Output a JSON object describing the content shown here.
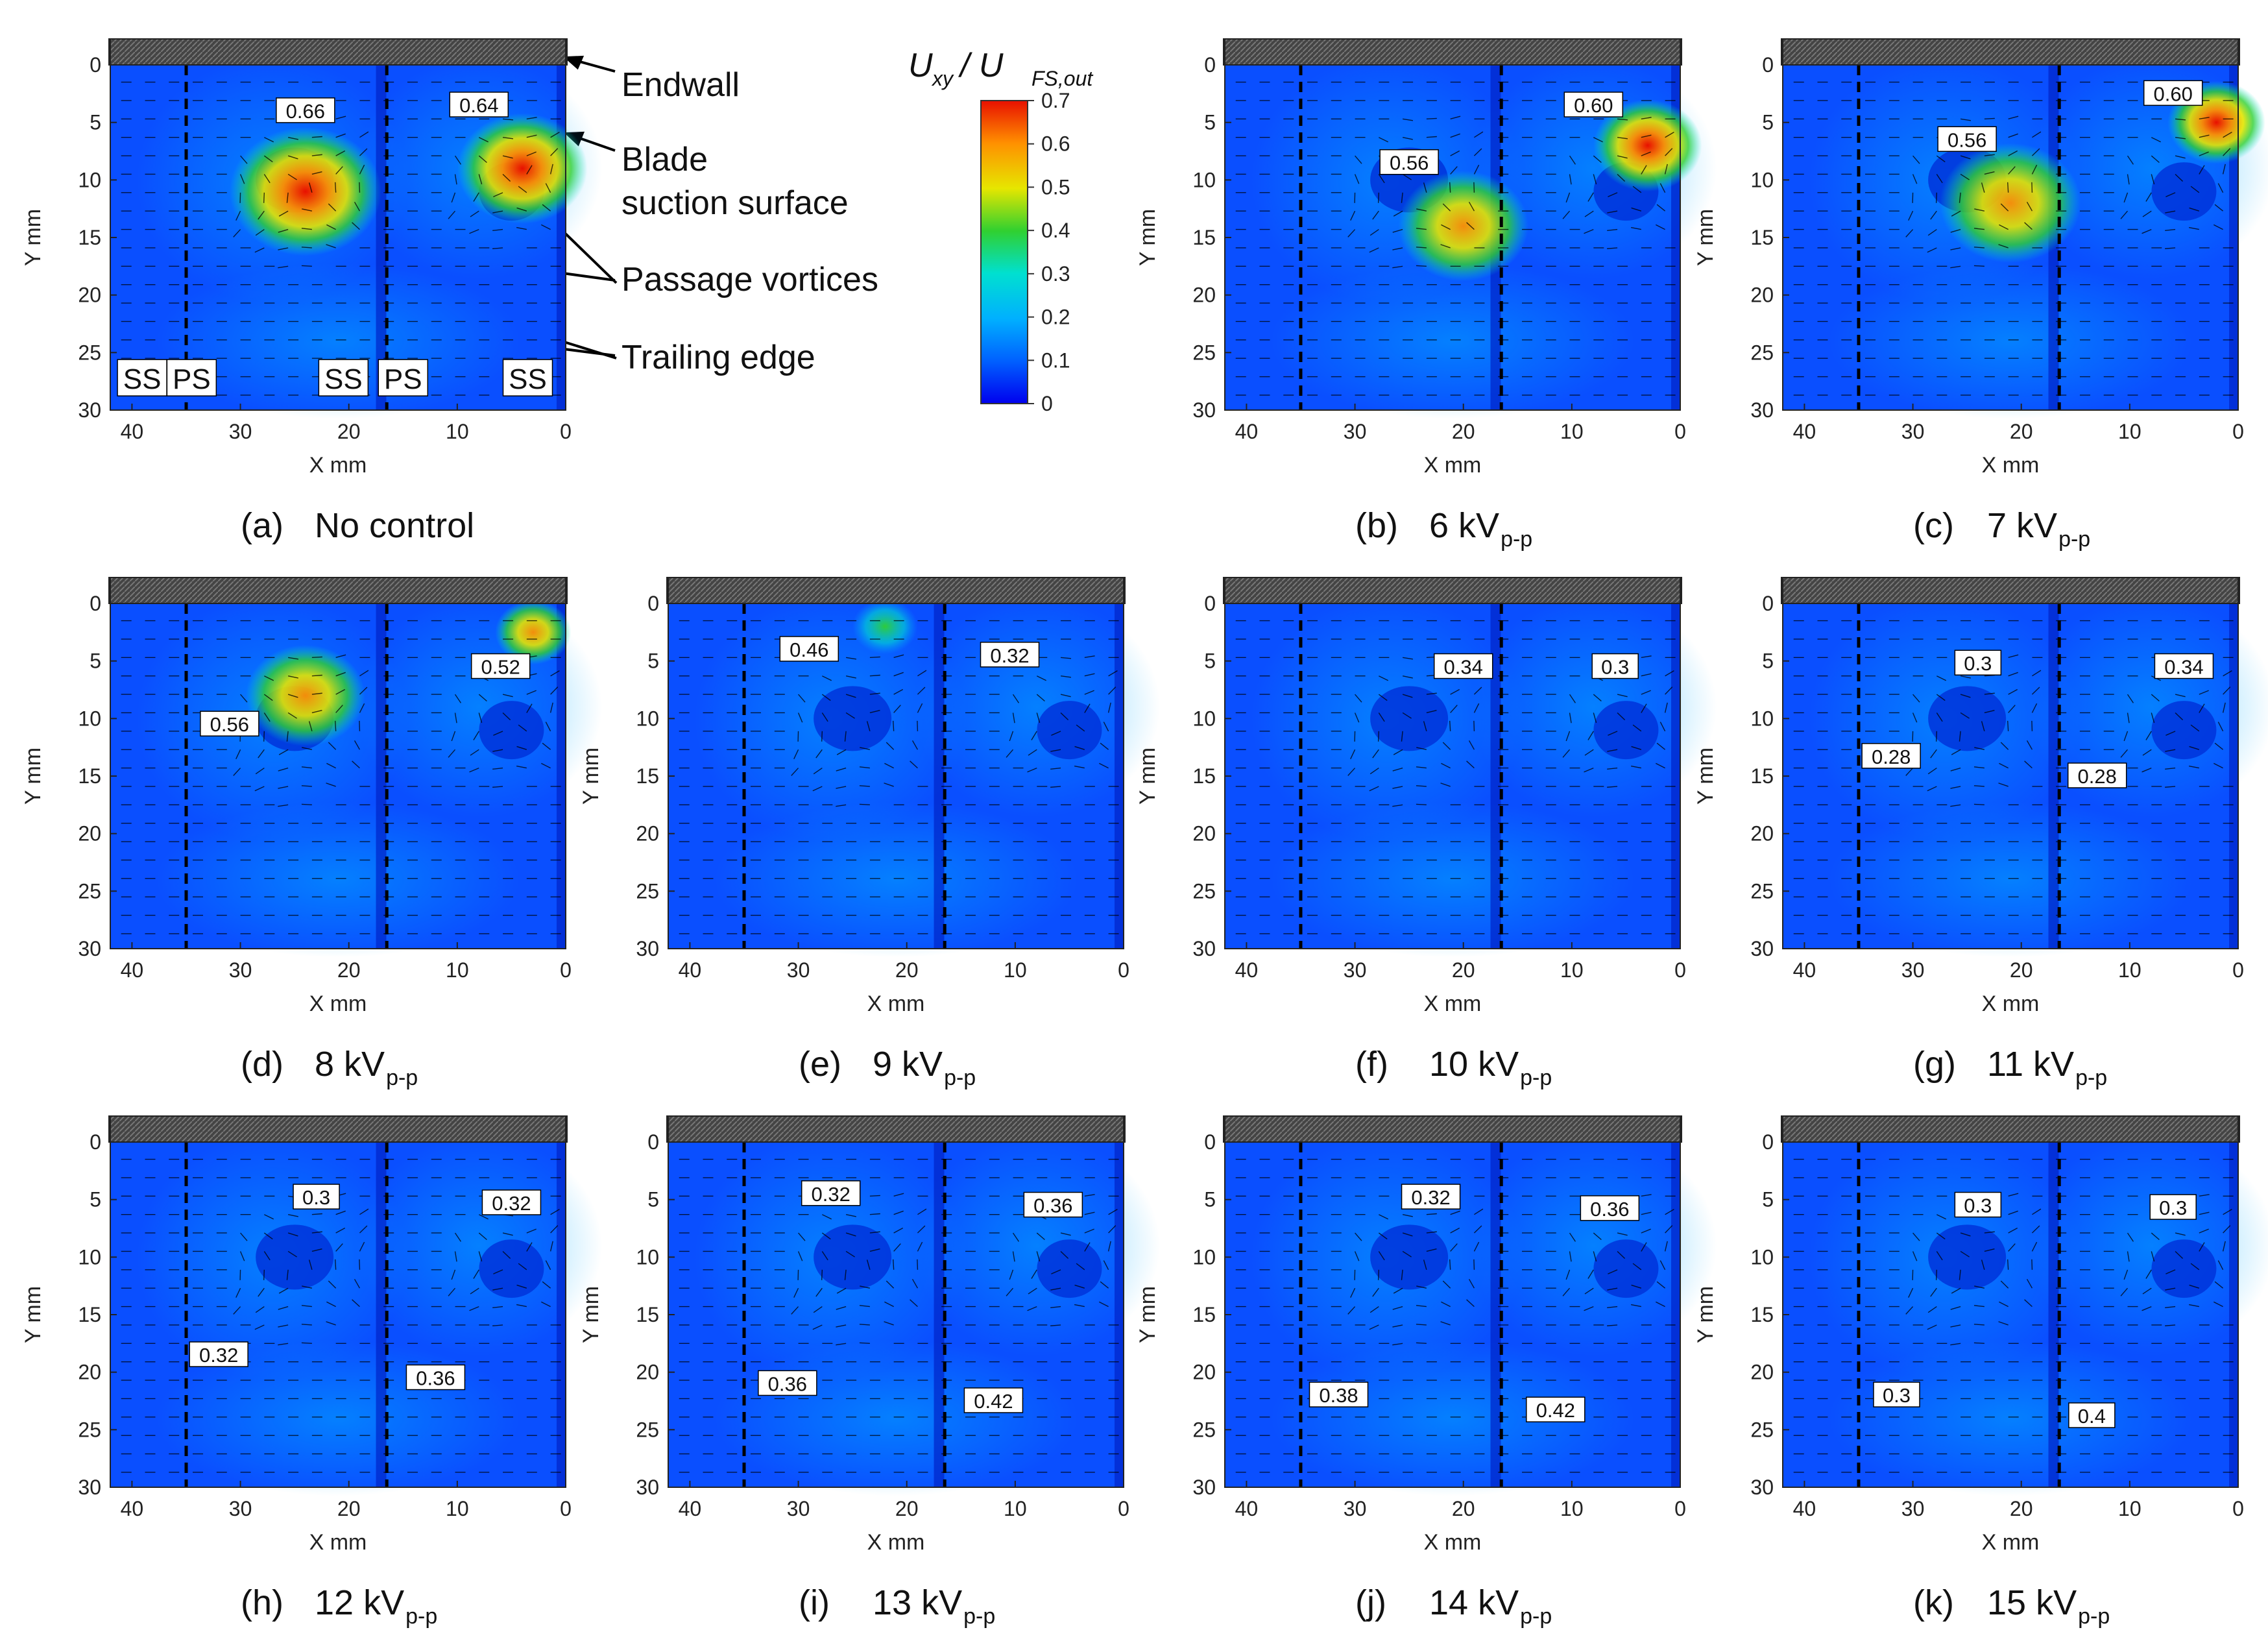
{
  "figure": {
    "annotations": {
      "endwall": "Endwall",
      "blade_line1": "Blade",
      "blade_line2": "suction surface",
      "passage_vortices": "Passage vortices",
      "trailing_edge": "Trailing edge"
    },
    "colorbar": {
      "title_main": "U",
      "title_sub1": "xy",
      "title_sep": " / U",
      "title_sub2": "FS,out",
      "ticks": [
        "0.7",
        "0.6",
        "0.5",
        "0.4",
        "0.3",
        "0.2",
        "0.1",
        "0"
      ],
      "colors": [
        "#0000ee",
        "#0060ff",
        "#00b0ff",
        "#00e0d0",
        "#30d030",
        "#e6e600",
        "#ff9000",
        "#e81000"
      ]
    },
    "region_labels": [
      "SS",
      "PS",
      "SS",
      "PS",
      "SS"
    ],
    "axis": {
      "xlabel": "X mm",
      "ylabel": "Y mm"
    }
  },
  "chart_data": [
    {
      "type": "heatmap",
      "panel": "a",
      "caption_label": "(a)",
      "caption_text": "No control",
      "caption_sub": "",
      "title": "(a) No control",
      "xlabel": "X mm",
      "ylabel": "Y mm",
      "xlim": [
        42,
        0
      ],
      "ylim": [
        0,
        30
      ],
      "x_ticks": [
        "40",
        "30",
        "20",
        "10",
        "0"
      ],
      "y_ticks": [
        "0",
        "5",
        "10",
        "15",
        "20",
        "25",
        "30"
      ],
      "colorbar_range": [
        0,
        0.7
      ],
      "trailing_edge_x": [
        35,
        16.5
      ],
      "contour_labels": [
        {
          "value": "0.66",
          "x": 24,
          "y": 4
        },
        {
          "value": "0.64",
          "x": 8,
          "y": 3.5
        }
      ],
      "hotspots": [
        {
          "x": 24,
          "y": 11,
          "peak": 0.66,
          "r": 7
        },
        {
          "x": 4,
          "y": 9,
          "peak": 0.64,
          "r": 6
        }
      ]
    },
    {
      "type": "heatmap",
      "panel": "b",
      "caption_label": "(b)",
      "caption_text": "6 kV",
      "caption_sub": "p-p",
      "title": "(b) 6 kVp-p",
      "xlabel": "X mm",
      "ylabel": "Y mm",
      "xlim": [
        42,
        0
      ],
      "ylim": [
        0,
        30
      ],
      "x_ticks": [
        "40",
        "30",
        "20",
        "10",
        "0"
      ],
      "y_ticks": [
        "0",
        "5",
        "10",
        "15",
        "20",
        "25",
        "30"
      ],
      "colorbar_range": [
        0,
        0.7
      ],
      "trailing_edge_x": [
        35,
        16.5
      ],
      "contour_labels": [
        {
          "value": "0.56",
          "x": 25,
          "y": 8.5
        },
        {
          "value": "0.60",
          "x": 8,
          "y": 3.5
        }
      ],
      "hotspots": [
        {
          "x": 20,
          "y": 14,
          "peak": 0.56,
          "r": 6
        },
        {
          "x": 3,
          "y": 7,
          "peak": 0.6,
          "r": 5
        }
      ]
    },
    {
      "type": "heatmap",
      "panel": "c",
      "caption_label": "(c)",
      "caption_text": "7 kV",
      "caption_sub": "p-p",
      "title": "(c) 7 kVp-p",
      "xlabel": "X mm",
      "ylabel": "Y mm",
      "xlim": [
        42,
        0
      ],
      "ylim": [
        0,
        30
      ],
      "x_ticks": [
        "40",
        "30",
        "20",
        "10",
        "0"
      ],
      "y_ticks": [
        "0",
        "5",
        "10",
        "15",
        "20",
        "25",
        "30"
      ],
      "colorbar_range": [
        0,
        0.7
      ],
      "trailing_edge_x": [
        35,
        16.5
      ],
      "contour_labels": [
        {
          "value": "0.56",
          "x": 25,
          "y": 6.5
        },
        {
          "value": "0.60",
          "x": 6,
          "y": 2.5
        }
      ],
      "hotspots": [
        {
          "x": 21,
          "y": 12,
          "peak": 0.56,
          "r": 6.5
        },
        {
          "x": 2,
          "y": 5,
          "peak": 0.6,
          "r": 4.5
        }
      ]
    },
    {
      "type": "heatmap",
      "panel": "d",
      "caption_label": "(d)",
      "caption_text": "8 kV",
      "caption_sub": "p-p",
      "title": "(d) 8 kVp-p",
      "xlabel": "X mm",
      "ylabel": "Y mm",
      "xlim": [
        42,
        0
      ],
      "ylim": [
        0,
        30
      ],
      "x_ticks": [
        "40",
        "30",
        "20",
        "10",
        "0"
      ],
      "y_ticks": [
        "0",
        "5",
        "10",
        "15",
        "20",
        "25",
        "30"
      ],
      "colorbar_range": [
        0,
        0.7
      ],
      "trailing_edge_x": [
        35,
        16.5
      ],
      "contour_labels": [
        {
          "value": "0.56",
          "x": 31,
          "y": 10.5
        },
        {
          "value": "0.52",
          "x": 6,
          "y": 5.5
        }
      ],
      "hotspots": [
        {
          "x": 24,
          "y": 8,
          "peak": 0.56,
          "r": 5.5
        },
        {
          "x": 3,
          "y": 2.5,
          "peak": 0.52,
          "r": 3.5
        }
      ]
    },
    {
      "type": "heatmap",
      "panel": "e",
      "caption_label": "(e)",
      "caption_text": "9 kV",
      "caption_sub": "p-p",
      "title": "(e) 9 kVp-p",
      "xlabel": "X mm",
      "ylabel": "Y mm",
      "xlim": [
        42,
        0
      ],
      "ylim": [
        0,
        30
      ],
      "x_ticks": [
        "40",
        "30",
        "20",
        "10",
        "0"
      ],
      "y_ticks": [
        "0",
        "5",
        "10",
        "15",
        "20",
        "25",
        "30"
      ],
      "colorbar_range": [
        0,
        0.7
      ],
      "trailing_edge_x": [
        35,
        16.5
      ],
      "contour_labels": [
        {
          "value": "0.46",
          "x": 29,
          "y": 4
        },
        {
          "value": "0.32",
          "x": 10.5,
          "y": 4.5
        }
      ],
      "hotspots": [
        {
          "x": 22,
          "y": 2,
          "peak": 0.46,
          "r": 3
        }
      ]
    },
    {
      "type": "heatmap",
      "panel": "f",
      "caption_label": "(f)",
      "caption_text": "10 kV",
      "caption_sub": "p-p",
      "title": "(f) 10 kVp-p",
      "xlabel": "X mm",
      "ylabel": "Y mm",
      "xlim": [
        42,
        0
      ],
      "ylim": [
        0,
        30
      ],
      "x_ticks": [
        "40",
        "30",
        "20",
        "10",
        "0"
      ],
      "y_ticks": [
        "0",
        "5",
        "10",
        "15",
        "20",
        "25",
        "30"
      ],
      "colorbar_range": [
        0,
        0.7
      ],
      "trailing_edge_x": [
        35,
        16.5
      ],
      "contour_labels": [
        {
          "value": "0.34",
          "x": 20,
          "y": 5.5
        },
        {
          "value": "0.3",
          "x": 6,
          "y": 5.5
        }
      ],
      "hotspots": []
    },
    {
      "type": "heatmap",
      "panel": "g",
      "caption_label": "(g)",
      "caption_text": "11 kV",
      "caption_sub": "p-p",
      "title": "(g) 11 kVp-p",
      "xlabel": "X mm",
      "ylabel": "Y mm",
      "xlim": [
        42,
        0
      ],
      "ylim": [
        0,
        30
      ],
      "x_ticks": [
        "40",
        "30",
        "20",
        "10",
        "0"
      ],
      "y_ticks": [
        "0",
        "5",
        "10",
        "15",
        "20",
        "25",
        "30"
      ],
      "colorbar_range": [
        0,
        0.7
      ],
      "trailing_edge_x": [
        35,
        16.5
      ],
      "contour_labels": [
        {
          "value": "0.3",
          "x": 24,
          "y": 5.2
        },
        {
          "value": "0.34",
          "x": 5,
          "y": 5.5
        },
        {
          "value": "0.28",
          "x": 32,
          "y": 13.3
        },
        {
          "value": "0.28",
          "x": 13,
          "y": 15
        }
      ],
      "hotspots": []
    },
    {
      "type": "heatmap",
      "panel": "h",
      "caption_label": "(h)",
      "caption_text": "12 kV",
      "caption_sub": "p-p",
      "title": "(h) 12 kVp-p",
      "xlabel": "X mm",
      "ylabel": "Y mm",
      "xlim": [
        42,
        0
      ],
      "ylim": [
        0,
        30
      ],
      "x_ticks": [
        "40",
        "30",
        "20",
        "10",
        "0"
      ],
      "y_ticks": [
        "0",
        "5",
        "10",
        "15",
        "20",
        "25",
        "30"
      ],
      "colorbar_range": [
        0,
        0.7
      ],
      "trailing_edge_x": [
        35,
        16.5
      ],
      "contour_labels": [
        {
          "value": "0.3",
          "x": 23,
          "y": 4.8
        },
        {
          "value": "0.32",
          "x": 5,
          "y": 5.3
        },
        {
          "value": "0.32",
          "x": 32,
          "y": 18.5
        },
        {
          "value": "0.36",
          "x": 12,
          "y": 20.5
        }
      ],
      "hotspots": []
    },
    {
      "type": "heatmap",
      "panel": "i",
      "caption_label": "(i)",
      "caption_text": "13 kV",
      "caption_sub": "p-p",
      "title": "(i) 13 kVp-p",
      "xlabel": "X mm",
      "ylabel": "Y mm",
      "xlim": [
        42,
        0
      ],
      "ylim": [
        0,
        30
      ],
      "x_ticks": [
        "40",
        "30",
        "20",
        "10",
        "0"
      ],
      "y_ticks": [
        "0",
        "5",
        "10",
        "15",
        "20",
        "25",
        "30"
      ],
      "colorbar_range": [
        0,
        0.7
      ],
      "trailing_edge_x": [
        35,
        16.5
      ],
      "contour_labels": [
        {
          "value": "0.32",
          "x": 27,
          "y": 4.5
        },
        {
          "value": "0.36",
          "x": 6.5,
          "y": 5.5
        },
        {
          "value": "0.36",
          "x": 31,
          "y": 21
        },
        {
          "value": "0.42",
          "x": 12,
          "y": 22.5
        }
      ],
      "hotspots": []
    },
    {
      "type": "heatmap",
      "panel": "j",
      "caption_label": "(j)",
      "caption_text": "14 kV",
      "caption_sub": "p-p",
      "title": "(j) 14 kVp-p",
      "xlabel": "X mm",
      "ylabel": "Y mm",
      "xlim": [
        42,
        0
      ],
      "ylim": [
        0,
        30
      ],
      "x_ticks": [
        "40",
        "30",
        "20",
        "10",
        "0"
      ],
      "y_ticks": [
        "0",
        "5",
        "10",
        "15",
        "20",
        "25",
        "30"
      ],
      "colorbar_range": [
        0,
        0.7
      ],
      "trailing_edge_x": [
        35,
        16.5
      ],
      "contour_labels": [
        {
          "value": "0.32",
          "x": 23,
          "y": 4.8
        },
        {
          "value": "0.36",
          "x": 6.5,
          "y": 5.8
        },
        {
          "value": "0.38",
          "x": 31.5,
          "y": 22
        },
        {
          "value": "0.42",
          "x": 11.5,
          "y": 23.3
        }
      ],
      "hotspots": []
    },
    {
      "type": "heatmap",
      "panel": "k",
      "caption_label": "(k)",
      "caption_text": "15 kV",
      "caption_sub": "p-p",
      "title": "(k) 15 kVp-p",
      "xlabel": "X mm",
      "ylabel": "Y mm",
      "xlim": [
        42,
        0
      ],
      "ylim": [
        0,
        30
      ],
      "x_ticks": [
        "40",
        "30",
        "20",
        "10",
        "0"
      ],
      "y_ticks": [
        "0",
        "5",
        "10",
        "15",
        "20",
        "25",
        "30"
      ],
      "colorbar_range": [
        0,
        0.7
      ],
      "trailing_edge_x": [
        35,
        16.5
      ],
      "contour_labels": [
        {
          "value": "0.3",
          "x": 24,
          "y": 5.5
        },
        {
          "value": "0.3",
          "x": 6,
          "y": 5.7
        },
        {
          "value": "0.3",
          "x": 31.5,
          "y": 22
        },
        {
          "value": "0.4",
          "x": 13.5,
          "y": 23.8
        }
      ],
      "hotspots": []
    }
  ]
}
